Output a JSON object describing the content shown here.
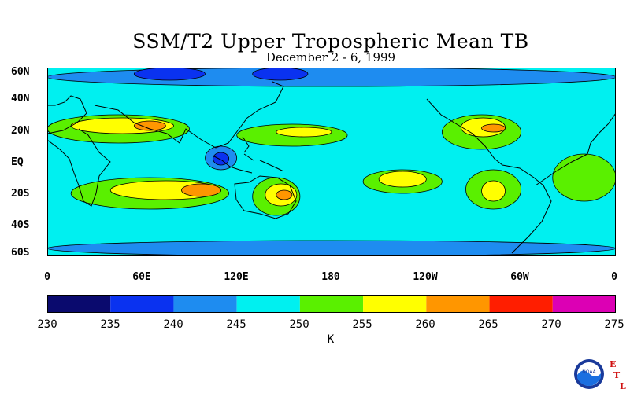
{
  "title": "SSM/T2 Upper Tropospheric Mean TB",
  "subtitle": "December 2 - 6, 1999",
  "lat_labels": [
    "60N",
    "40N",
    "20N",
    "EQ",
    "20S",
    "40S",
    "60S"
  ],
  "lon_labels": [
    "0",
    "60E",
    "120E",
    "180",
    "120W",
    "60W",
    "0"
  ],
  "colorbar": {
    "levels": [
      "230",
      "235",
      "240",
      "245",
      "250",
      "255",
      "260",
      "265",
      "270",
      "275"
    ],
    "colors": [
      "#0a0a6e",
      "#0a32f0",
      "#1e8cf0",
      "#00f0f0",
      "#5af000",
      "#ffff00",
      "#ff9600",
      "#ff1e00",
      "#dc00b4"
    ],
    "unit": "K"
  },
  "logo": {
    "text": "NOAA",
    "letters": [
      "E",
      "T",
      "L"
    ],
    "icon": "noaa-logo-icon"
  },
  "chart_data": {
    "type": "heatmap",
    "title": "SSM/T2 Upper Tropospheric Mean TB",
    "subtitle": "December 2 - 6, 1999",
    "x_axis_ticks": [
      "0",
      "60E",
      "120E",
      "180",
      "120W",
      "60W",
      "0"
    ],
    "y_axis_ticks": [
      "60N",
      "40N",
      "20N",
      "EQ",
      "20S",
      "40S",
      "60S"
    ],
    "xlim": [
      0,
      360
    ],
    "ylim": [
      -60,
      60
    ],
    "unit": "K",
    "levels": [
      230,
      235,
      240,
      245,
      250,
      255,
      260,
      265,
      270,
      275
    ],
    "background_level": 245,
    "regions": [
      {
        "lon": [
          0,
          360
        ],
        "lat": [
          -60,
          -50
        ],
        "value": 242
      },
      {
        "lon": [
          0,
          360
        ],
        "lat": [
          48,
          60
        ],
        "value": 242
      },
      {
        "lon": [
          55,
          100
        ],
        "lat": [
          52,
          60
        ],
        "value": 237
      },
      {
        "lon": [
          130,
          165
        ],
        "lat": [
          52,
          60
        ],
        "value": 237
      },
      {
        "lon": [
          0,
          90
        ],
        "lat": [
          12,
          30
        ],
        "value": 252
      },
      {
        "lon": [
          15,
          80
        ],
        "lat": [
          18,
          28
        ],
        "value": 257
      },
      {
        "lon": [
          55,
          75
        ],
        "lat": [
          20,
          26
        ],
        "value": 262
      },
      {
        "lon": [
          120,
          190
        ],
        "lat": [
          10,
          24
        ],
        "value": 252
      },
      {
        "lon": [
          145,
          180
        ],
        "lat": [
          16,
          22
        ],
        "value": 257
      },
      {
        "lon": [
          250,
          300
        ],
        "lat": [
          8,
          30
        ],
        "value": 252
      },
      {
        "lon": [
          262,
          290
        ],
        "lat": [
          16,
          28
        ],
        "value": 257
      },
      {
        "lon": [
          275,
          290
        ],
        "lat": [
          19,
          24
        ],
        "value": 262
      },
      {
        "lon": [
          200,
          250
        ],
        "lat": [
          -20,
          -5
        ],
        "value": 252
      },
      {
        "lon": [
          210,
          240
        ],
        "lat": [
          -16,
          -6
        ],
        "value": 257
      },
      {
        "lon": [
          265,
          300
        ],
        "lat": [
          -30,
          -5
        ],
        "value": 252
      },
      {
        "lon": [
          275,
          290
        ],
        "lat": [
          -25,
          -12
        ],
        "value": 257
      },
      {
        "lon": [
          15,
          115
        ],
        "lat": [
          -30,
          -10
        ],
        "value": 252
      },
      {
        "lon": [
          40,
          110
        ],
        "lat": [
          -24,
          -12
        ],
        "value": 257
      },
      {
        "lon": [
          85,
          110
        ],
        "lat": [
          -22,
          -14
        ],
        "value": 262
      },
      {
        "lon": [
          130,
          160
        ],
        "lat": [
          -34,
          -10
        ],
        "value": 252
      },
      {
        "lon": [
          138,
          158
        ],
        "lat": [
          -28,
          -14
        ],
        "value": 257
      },
      {
        "lon": [
          145,
          155
        ],
        "lat": [
          -24,
          -18
        ],
        "value": 262
      },
      {
        "lon": [
          320,
          360
        ],
        "lat": [
          -25,
          5
        ],
        "value": 252
      },
      {
        "lon": [
          100,
          120
        ],
        "lat": [
          -5,
          10
        ],
        "value": 242
      },
      {
        "lon": [
          105,
          115
        ],
        "lat": [
          -2,
          6
        ],
        "value": 237
      }
    ]
  }
}
